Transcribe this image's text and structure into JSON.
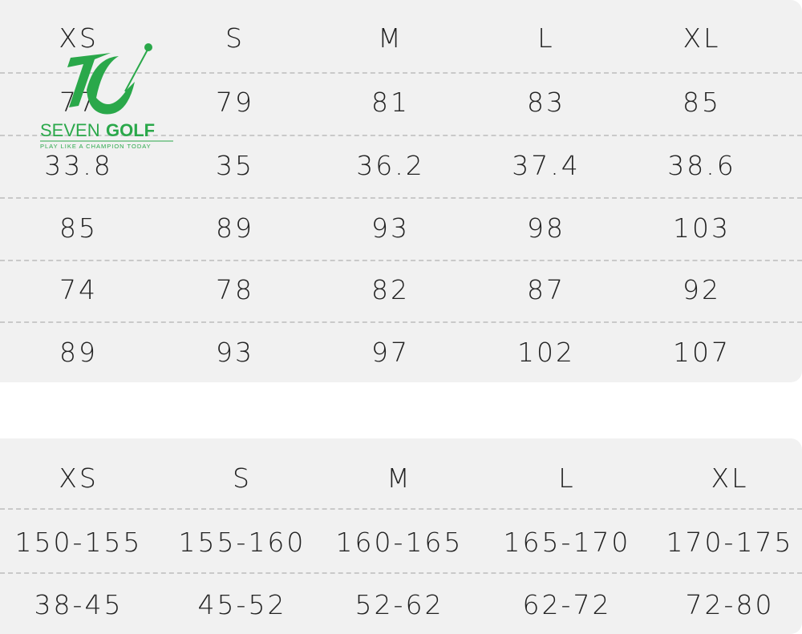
{
  "logo": {
    "brand_a": "SEVEN",
    "brand_b": "GOLF",
    "tagline": "PLAY LIKE A CHAMPION TODAY",
    "color": "#2aa84a"
  },
  "table1": {
    "headers": [
      "XS",
      "S",
      "M",
      "L",
      "XL"
    ],
    "rows": [
      [
        "77",
        "79",
        "81",
        "83",
        "85"
      ],
      [
        "33.8",
        "35",
        "36.2",
        "37.4",
        "38.6"
      ],
      [
        "85",
        "89",
        "93",
        "98",
        "103"
      ],
      [
        "74",
        "78",
        "82",
        "87",
        "92"
      ],
      [
        "89",
        "93",
        "97",
        "102",
        "107"
      ]
    ]
  },
  "table2": {
    "headers": [
      "XS",
      "S",
      "M",
      "L",
      "XL"
    ],
    "rows": [
      [
        "150-155",
        "155-160",
        "160-165",
        "165-170",
        "170-175"
      ],
      [
        "38-45",
        "45-52",
        "52-62",
        "62-72",
        "72-80"
      ]
    ]
  }
}
